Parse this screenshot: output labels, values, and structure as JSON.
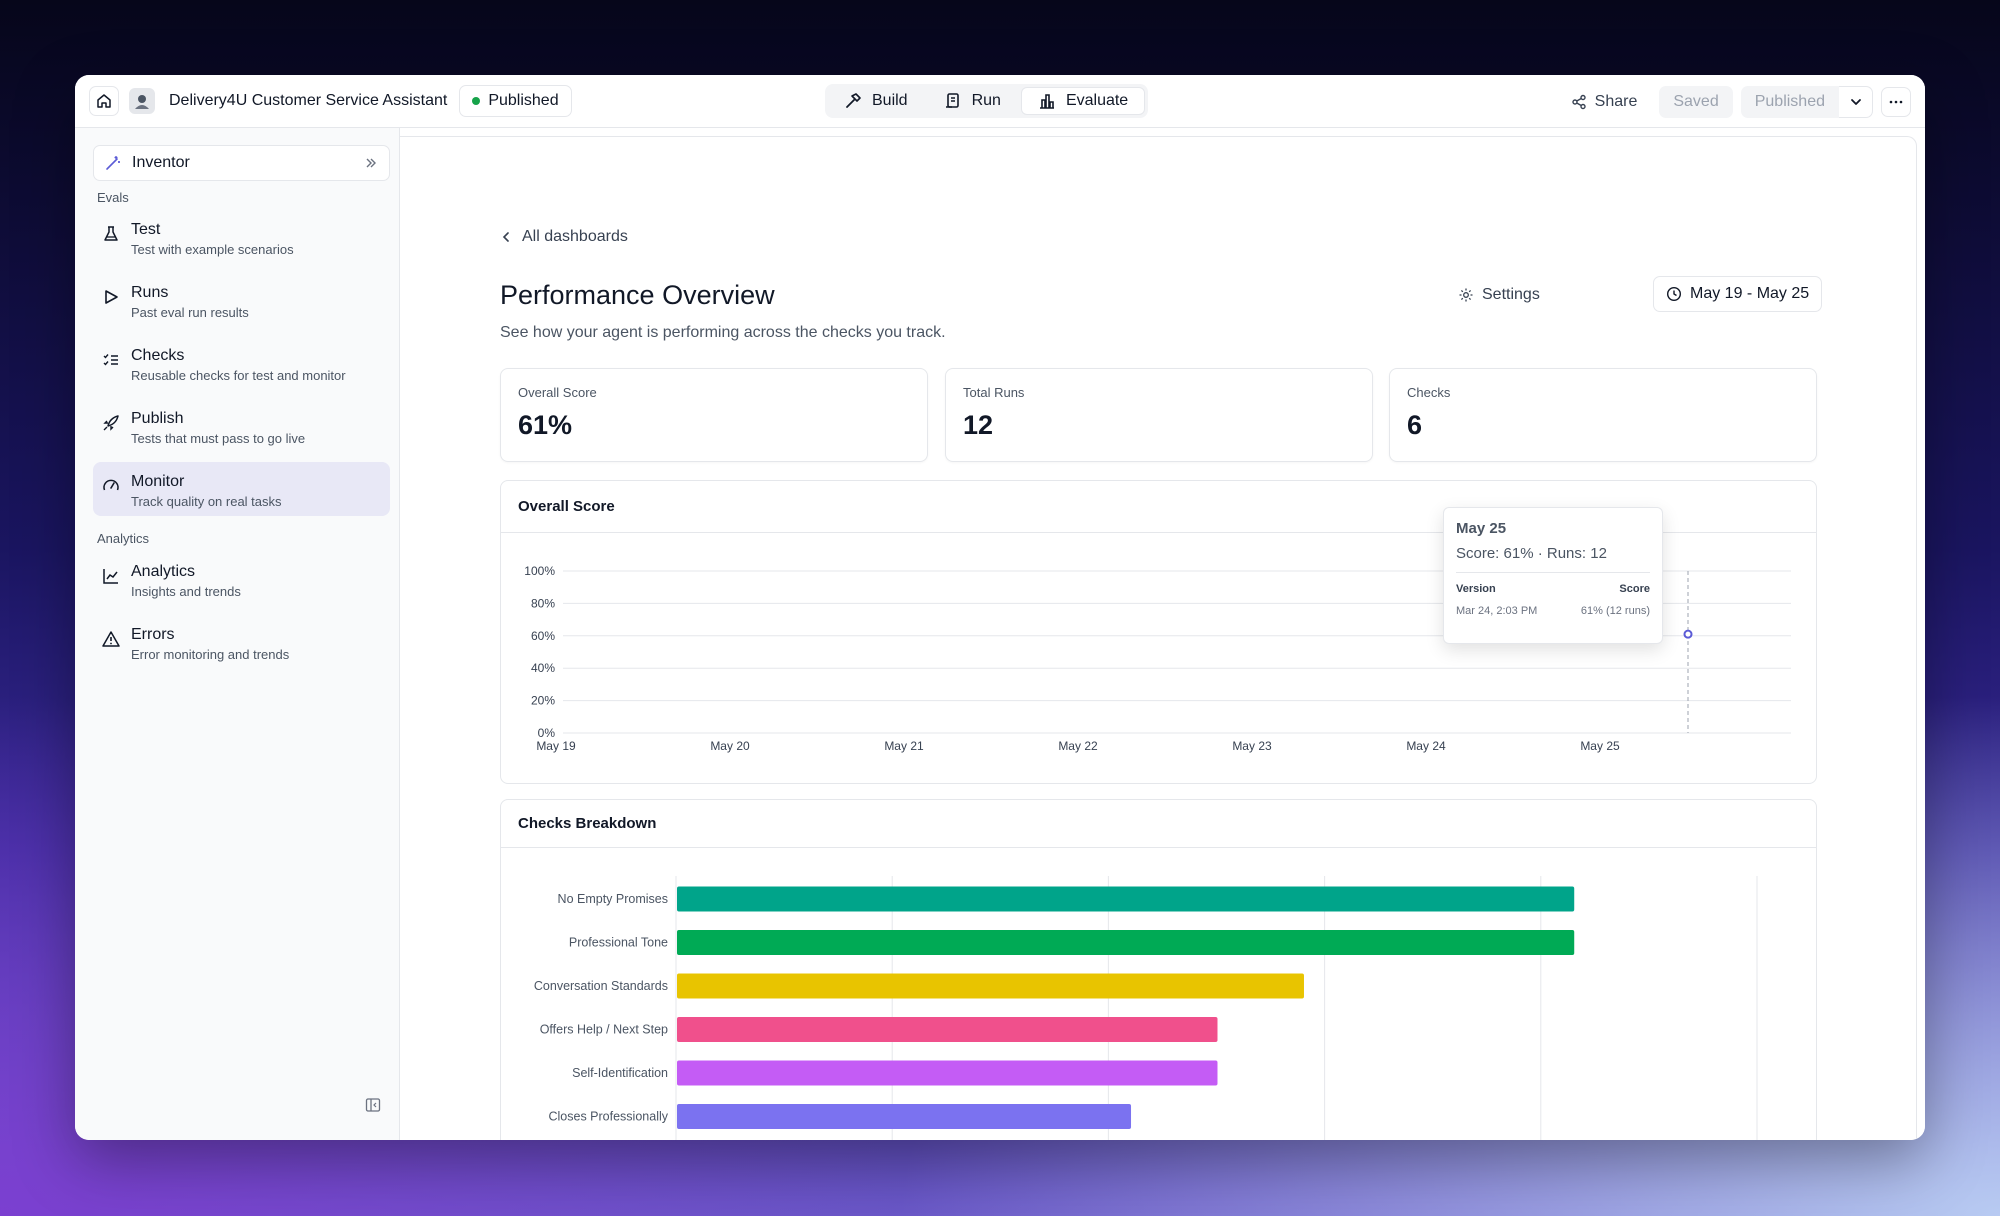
{
  "topbar": {
    "app_title": "Delivery4U Customer Service Assistant",
    "status_badge": "Published",
    "modes": [
      {
        "label": "Build",
        "icon": "hammer-icon"
      },
      {
        "label": "Run",
        "icon": "document-icon"
      },
      {
        "label": "Evaluate",
        "icon": "chart-icon",
        "active": true
      }
    ],
    "share_label": "Share",
    "saved_label": "Saved",
    "published_label": "Published"
  },
  "sidebar": {
    "inventor_label": "Inventor",
    "evals_label": "Evals",
    "analytics_label": "Analytics",
    "evals": [
      {
        "title": "Test",
        "sub": "Test with example scenarios",
        "icon": "flask-icon"
      },
      {
        "title": "Runs",
        "sub": "Past eval run results",
        "icon": "play-icon"
      },
      {
        "title": "Checks",
        "sub": "Reusable checks for test and monitor",
        "icon": "checklist-icon"
      },
      {
        "title": "Publish",
        "sub": "Tests that must pass to go live",
        "icon": "rocket-icon"
      },
      {
        "title": "Monitor",
        "sub": "Track quality on real tasks",
        "icon": "gauge-icon",
        "active": true
      }
    ],
    "analytics": [
      {
        "title": "Analytics",
        "sub": "Insights and trends",
        "icon": "line-chart-icon"
      },
      {
        "title": "Errors",
        "sub": "Error monitoring and trends",
        "icon": "warning-icon"
      }
    ]
  },
  "main": {
    "back_label": "All dashboards",
    "title": "Performance Overview",
    "subtitle": "See how your agent is performing across the checks you track.",
    "settings_label": "Settings",
    "date_range": "May 19 - May 25",
    "stats": [
      {
        "label": "Overall Score",
        "value": "61%"
      },
      {
        "label": "Total Runs",
        "value": "12"
      },
      {
        "label": "Checks",
        "value": "6"
      }
    ],
    "overall_card_title": "Overall Score",
    "breakdown_card_title": "Checks Breakdown",
    "tooltip": {
      "title": "May 25",
      "line": "Score: 61% · Runs: 12",
      "col_version": "Version",
      "col_score": "Score",
      "row_version": "Mar 24, 2:03 PM",
      "row_score": "61% (12 runs)"
    }
  },
  "colors": {
    "accent": "#5b5bd6",
    "teal": "#00a48a",
    "green": "#00aa55",
    "yellow": "#e8c400",
    "pink": "#f0508c",
    "purple": "#c45cf5",
    "indigo": "#7b72f0"
  },
  "chart_data": [
    {
      "type": "line",
      "title": "Overall Score",
      "x": [
        "May 19",
        "May 20",
        "May 21",
        "May 22",
        "May 23",
        "May 24",
        "May 25"
      ],
      "yticks": [
        "100%",
        "80%",
        "60%",
        "40%",
        "20%",
        "0%"
      ],
      "ylim": [
        0,
        100
      ],
      "series": [
        {
          "values": [
            null,
            null,
            null,
            null,
            null,
            null,
            61
          ]
        }
      ],
      "grid": true
    },
    {
      "type": "bar",
      "orientation": "horizontal",
      "title": "Checks Breakdown",
      "categories": [
        "No Empty Promises",
        "Professional Tone",
        "Conversation Standards",
        "Offers Help / Next Step",
        "Self-Identification",
        "Closes Professionally"
      ],
      "values": [
        83,
        83,
        58,
        50,
        50,
        42
      ],
      "colors": [
        "#00a48a",
        "#00aa55",
        "#e8c400",
        "#f0508c",
        "#c45cf5",
        "#7b72f0"
      ],
      "xlim": [
        0,
        100
      ],
      "grid": true
    }
  ]
}
